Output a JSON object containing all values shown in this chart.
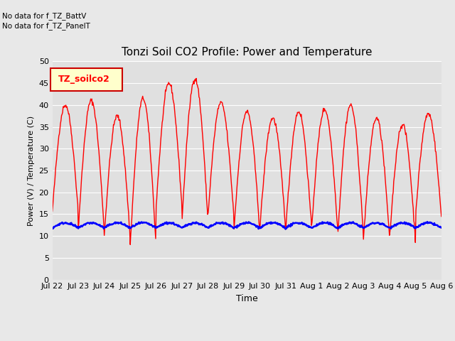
{
  "title": "Tonzi Soil CO2 Profile: Power and Temperature",
  "ylabel": "Power (V) / Temperature (C)",
  "xlabel": "Time",
  "no_data_text1": "No data for f_TZ_BattV",
  "no_data_text2": "No data for f_TZ_PanelT",
  "legend_label_text": "TZ_soilco2",
  "ylim": [
    0,
    50
  ],
  "yticks": [
    0,
    5,
    10,
    15,
    20,
    25,
    30,
    35,
    40,
    45,
    50
  ],
  "x_tick_labels": [
    "Jul 22",
    "Jul 23",
    "Jul 24",
    "Jul 25",
    "Jul 26",
    "Jul 27",
    "Jul 28",
    "Jul 29",
    "Jul 30",
    "Jul 31",
    "Aug 1",
    "Aug 2",
    "Aug 3",
    "Aug 4",
    "Aug 5",
    "Aug 6"
  ],
  "bg_color": "#e8e8e8",
  "plot_bg_color": "#e0e0e0",
  "grid_color": "#ffffff",
  "temp_color": "#ff0000",
  "volt_color": "#0000ff",
  "legend_box_facecolor": "#ffffcc",
  "legend_box_edgecolor": "#cc0000",
  "temp_linewidth": 1.0,
  "volt_linewidth": 1.8,
  "n_days": 15,
  "points_per_day": 48,
  "day_peaks": [
    40.0,
    41.0,
    37.5,
    41.5,
    45.0,
    46.0,
    40.5,
    38.5,
    37.0,
    38.5,
    39.0,
    40.0,
    37.0,
    35.5,
    38.0
  ],
  "day_mins": [
    15.5,
    11.5,
    9.8,
    7.5,
    16.5,
    13.5,
    14.5,
    11.0,
    11.5,
    11.5,
    12.0,
    9.5,
    9.5,
    9.0,
    14.5
  ],
  "volt_base": 11.8,
  "volt_amp": 1.2,
  "title_fontsize": 11,
  "tick_fontsize": 8,
  "label_fontsize": 8,
  "xlabel_fontsize": 9
}
